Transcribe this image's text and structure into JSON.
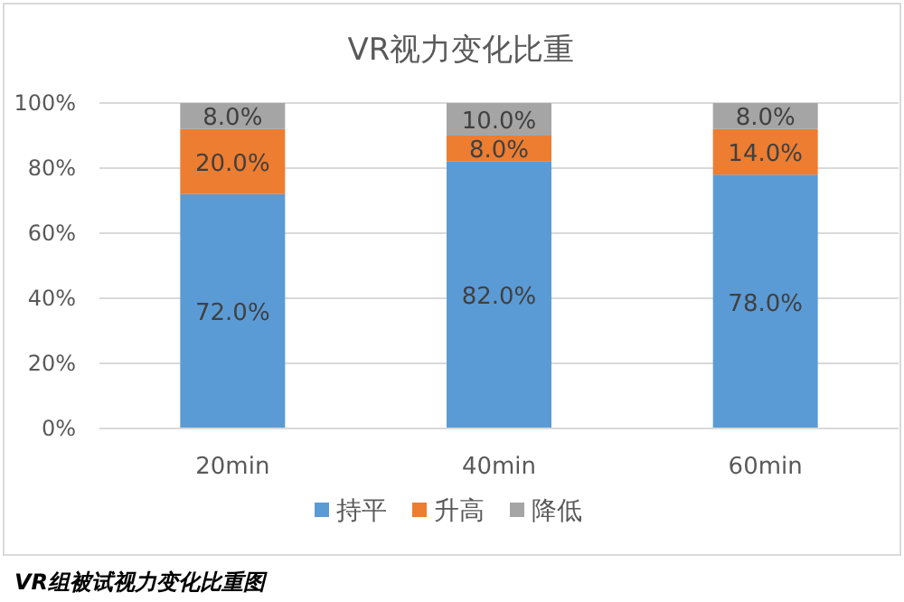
{
  "chart_data": {
    "type": "bar",
    "title": "VR视力变化比重",
    "stacked": true,
    "categories": [
      "20min",
      "40min",
      "60min"
    ],
    "series": [
      {
        "name": "持平",
        "color": "#5b9bd5",
        "values": [
          72,
          82,
          78
        ],
        "value_labels": [
          "72.0%",
          "82.0%",
          "78.0%"
        ]
      },
      {
        "name": "升高",
        "color": "#ed7d31",
        "values": [
          20,
          8,
          14
        ],
        "value_labels": [
          "20.0%",
          "8.0%",
          "14.0%"
        ]
      },
      {
        "name": "降低",
        "color": "#a5a5a5",
        "values": [
          8,
          10,
          8
        ],
        "value_labels": [
          "8.0%",
          "10.0%",
          "8.0%"
        ]
      }
    ],
    "ylim": [
      0,
      100
    ],
    "yticks": [
      {
        "value": 0,
        "label": "0%"
      },
      {
        "value": 20,
        "label": "20%"
      },
      {
        "value": 40,
        "label": "40%"
      },
      {
        "value": 60,
        "label": "60%"
      },
      {
        "value": 80,
        "label": "80%"
      },
      {
        "value": 100,
        "label": "100%"
      }
    ],
    "grid": "y",
    "legend": "bottom",
    "annotations": [
      "VR组被试视力变化比重图"
    ]
  }
}
